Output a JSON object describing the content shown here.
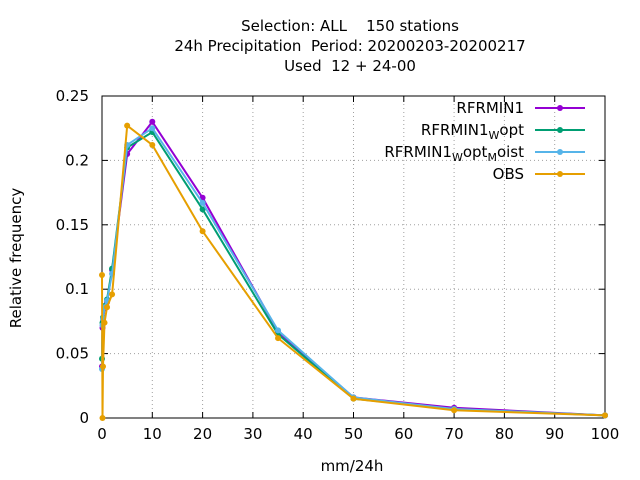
{
  "chart_data": {
    "type": "line",
    "title": [
      "Selection: ALL    150 stations",
      "24h Precipitation  Period: 20200203-20200217",
      "Used  12 + 24-00"
    ],
    "xlabel": "mm/24h",
    "ylabel": "Relative frequency",
    "xlim": [
      0,
      100
    ],
    "ylim": [
      0,
      0.25
    ],
    "xticks": [
      0,
      10,
      20,
      30,
      40,
      50,
      60,
      70,
      80,
      90,
      100
    ],
    "yticks": [
      0,
      0.05,
      0.1,
      0.15,
      0.2,
      0.25
    ],
    "xtick_labels": [
      "0",
      "10",
      "20",
      "30",
      "40",
      "50",
      "60",
      "70",
      "80",
      "90",
      "100"
    ],
    "ytick_labels": [
      "0",
      "0.05",
      "0.1",
      "0.15",
      "0.2",
      "0.25"
    ],
    "grid": true,
    "legend_position": "top-right",
    "series": [
      {
        "name": "RFRMIN1",
        "name_parts": [
          {
            "t": "RFRMIN1",
            "sub": false
          }
        ],
        "color": "#9400d3",
        "x": [
          0,
          0.1,
          0.2,
          0.5,
          1,
          2,
          5,
          10,
          20,
          35,
          50,
          70,
          100
        ],
        "y": [
          0.04,
          0.07,
          0.075,
          0.085,
          0.09,
          0.115,
          0.205,
          0.23,
          0.171,
          0.067,
          0.016,
          0.008,
          0.002
        ]
      },
      {
        "name": "RFRMIN1_Wopt",
        "name_parts": [
          {
            "t": "RFRMIN1",
            "sub": false
          },
          {
            "t": "W",
            "sub": true
          },
          {
            "t": "opt",
            "sub": false
          }
        ],
        "color": "#009e73",
        "x": [
          0,
          0.1,
          0.2,
          0.5,
          1,
          2,
          5,
          10,
          20,
          35,
          50,
          70,
          100
        ],
        "y": [
          0.046,
          0.074,
          0.078,
          0.087,
          0.092,
          0.116,
          0.21,
          0.222,
          0.162,
          0.065,
          0.015,
          0.007,
          0.002
        ]
      },
      {
        "name": "RFRMIN1_Wopt_Moist",
        "name_parts": [
          {
            "t": "RFRMIN1",
            "sub": false
          },
          {
            "t": "W",
            "sub": true
          },
          {
            "t": "opt",
            "sub": false
          },
          {
            "t": "M",
            "sub": true
          },
          {
            "t": "oist",
            "sub": false
          }
        ],
        "color": "#56b4e9",
        "x": [
          0,
          0.1,
          0.2,
          0.5,
          1,
          2,
          5,
          10,
          20,
          35,
          50,
          70,
          100
        ],
        "y": [
          0.038,
          0.072,
          0.077,
          0.086,
          0.091,
          0.112,
          0.212,
          0.225,
          0.167,
          0.068,
          0.016,
          0.007,
          0.002
        ]
      },
      {
        "name": "OBS",
        "name_parts": [
          {
            "t": "OBS",
            "sub": false
          }
        ],
        "color": "#e69f00",
        "x": [
          0,
          0.1,
          0.2,
          0.5,
          1,
          2,
          5,
          10,
          20,
          35,
          50,
          70,
          100
        ],
        "y": [
          0.111,
          0.0,
          0.04,
          0.074,
          0.086,
          0.096,
          0.227,
          0.212,
          0.145,
          0.062,
          0.015,
          0.006,
          0.002
        ]
      }
    ]
  }
}
